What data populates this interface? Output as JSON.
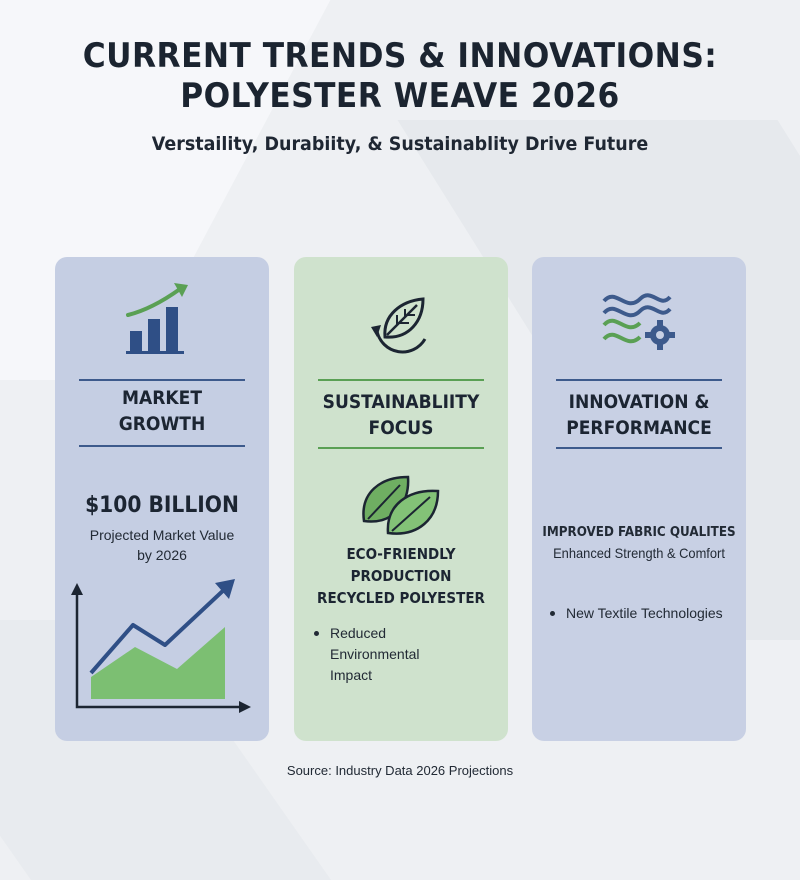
{
  "title": "CURRENT TRENDS & INNOVATIONS:\nPOLYESTER WEAVE 2026",
  "title_line1": "CURRENT TRENDS & INNOVATIONS:",
  "title_line2": "POLYESTER WEAVE 2026",
  "subtitle": "Verstaility, Durabiity, & Sustainablity Drive Future",
  "colors": {
    "blue_accent": "#3d5a8c",
    "green_accent": "#5aa054",
    "market_card": "#c5cee3",
    "sustainability_card": "#cfe2cd",
    "innovation_card": "#c8d0e4"
  },
  "cards": {
    "market": {
      "icon": "bar-chart-growth-icon",
      "heading_line1": "MARKET",
      "heading_line2": "GROWTH",
      "value": "$100 BILLION",
      "caption_line1": "Projected Market Value",
      "caption_line2": "by 2026",
      "chart_icon": "trend-line-area-chart-icon"
    },
    "sustainability": {
      "icon": "leaf-cycle-icon",
      "heading_line1": "SUSTAINABLIITY",
      "heading_line2": "FOCUS",
      "leaves_icon": "two-leaves-icon",
      "line1": "ECO-FRIENDLY",
      "line2": "PRODUCTION",
      "line3": "RECYCLED POLYESTER",
      "bullet_line1": "Reduced",
      "bullet_line2": "Environmental",
      "bullet_line3": "Impact"
    },
    "innovation": {
      "icon": "woven-fibers-gear-icon",
      "heading_line1": "INNOVATION &",
      "heading_line2": "PERFORMANCE",
      "line1": "IMPROVED FABRIC QUALITES",
      "line2": "Enhanced Strength & Comfort",
      "bullet": "New Textile Technologies"
    }
  },
  "source": "Source: Industry Data 2026 Projections"
}
